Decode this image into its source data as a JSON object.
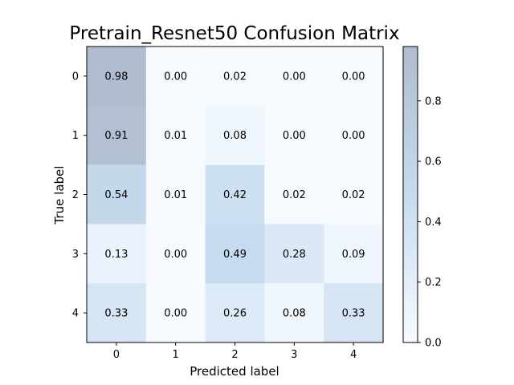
{
  "chart_data": {
    "type": "heatmap",
    "title": "Pretrain_Resnet50 Confusion Matrix",
    "xlabel": "Predicted label",
    "ylabel": "True label",
    "x_ticks": [
      "0",
      "1",
      "2",
      "3",
      "4"
    ],
    "y_ticks": [
      "0",
      "1",
      "2",
      "3",
      "4"
    ],
    "values": [
      [
        0.98,
        0.0,
        0.02,
        0.0,
        0.0
      ],
      [
        0.91,
        0.01,
        0.08,
        0.0,
        0.0
      ],
      [
        0.54,
        0.01,
        0.42,
        0.02,
        0.02
      ],
      [
        0.13,
        0.0,
        0.49,
        0.28,
        0.09
      ],
      [
        0.33,
        0.0,
        0.26,
        0.08,
        0.33
      ]
    ],
    "cell_labels": [
      [
        "0.98",
        "0.00",
        "0.02",
        "0.00",
        "0.00"
      ],
      [
        "0.91",
        "0.01",
        "0.08",
        "0.00",
        "0.00"
      ],
      [
        "0.54",
        "0.01",
        "0.42",
        "0.02",
        "0.02"
      ],
      [
        "0.13",
        "0.00",
        "0.49",
        "0.28",
        "0.09"
      ],
      [
        "0.33",
        "0.00",
        "0.26",
        "0.08",
        "0.33"
      ]
    ],
    "colorbar": {
      "range": [
        0,
        0.98
      ],
      "ticks": [
        0.0,
        0.2,
        0.4,
        0.6,
        0.8
      ],
      "tick_labels": [
        "0.0",
        "0.2",
        "0.4",
        "0.6",
        "0.8"
      ],
      "color_low": "#f7fbff",
      "color_mid": "#c6dbef",
      "color_high": "#b0bccf"
    },
    "grid": false,
    "legend": "colorbar-right"
  }
}
